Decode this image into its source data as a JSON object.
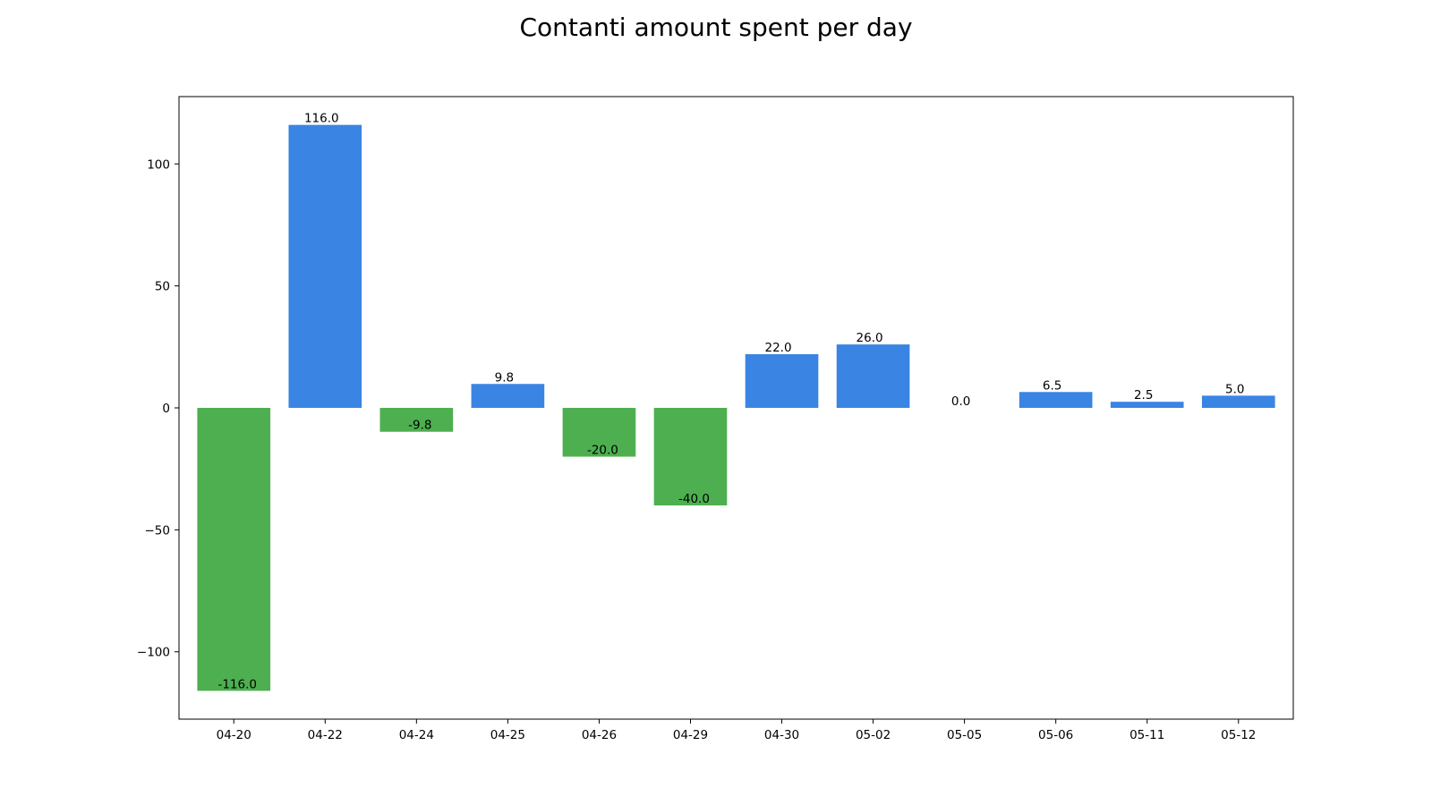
{
  "chart_data": {
    "type": "bar",
    "title": "Contanti amount spent per day",
    "xlabel": "",
    "ylabel": "",
    "categories": [
      "04-20",
      "04-22",
      "04-24",
      "04-25",
      "04-26",
      "04-29",
      "04-30",
      "05-02",
      "05-05",
      "05-06",
      "05-11",
      "05-12"
    ],
    "values": [
      -116.0,
      116.0,
      -9.8,
      9.8,
      -20.0,
      -40.0,
      22.0,
      26.0,
      0.0,
      6.5,
      2.5,
      5.0
    ],
    "value_labels": [
      "-116.0",
      "116.0",
      "-9.8",
      "9.8",
      "-20.0",
      "-40.0",
      "22.0",
      "26.0",
      "0.0",
      "6.5",
      "2.5",
      "5.0"
    ],
    "yticks": [
      -100,
      -50,
      0,
      50,
      100
    ],
    "ytick_labels": [
      "−100",
      "−50",
      "0",
      "50",
      "100"
    ],
    "ylim": [
      -127.6,
      127.6
    ],
    "grid": false,
    "colors": {
      "positive": "#3a84e3",
      "negative": "#4daf4f"
    }
  }
}
